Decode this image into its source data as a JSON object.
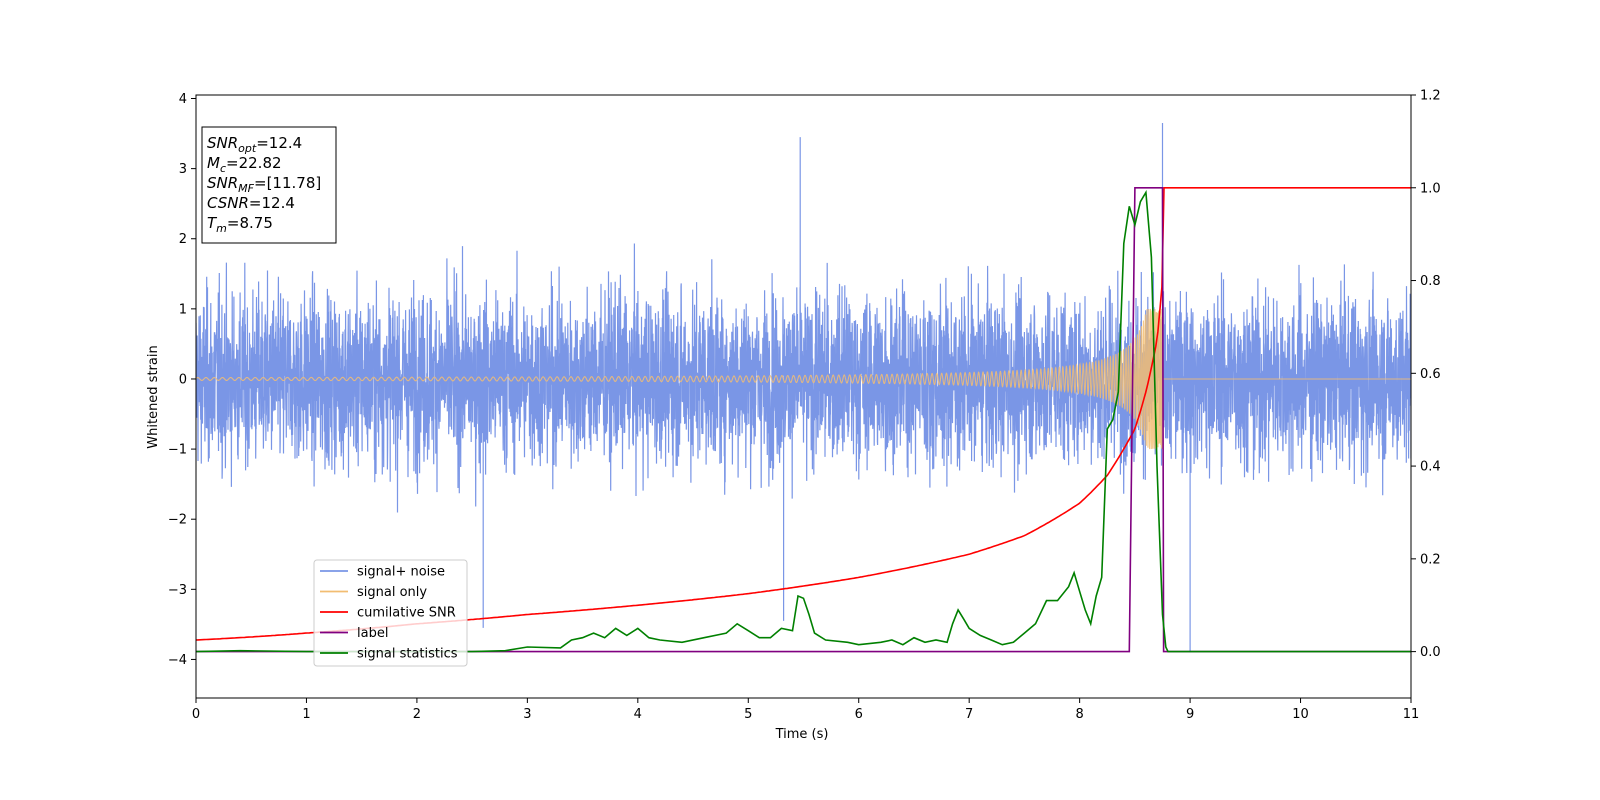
{
  "chart_data": {
    "type": "line",
    "xlabel": "Time (s)",
    "ylabel_left": "Whitened strain",
    "ylabel_right": "",
    "xlim": [
      0,
      11
    ],
    "ylim_left": [
      -4.55,
      4.05
    ],
    "ylim_right": [
      -0.1,
      1.2
    ],
    "x_ticks": [
      "0",
      "1",
      "2",
      "3",
      "4",
      "5",
      "6",
      "7",
      "8",
      "9",
      "10",
      "11"
    ],
    "y_ticks_left": [
      "−4",
      "−3",
      "−2",
      "−1",
      "0",
      "1",
      "2",
      "3",
      "4"
    ],
    "y_ticks_right": [
      "0.0",
      "0.2",
      "0.4",
      "0.6",
      "0.8",
      "1.0",
      "1.2"
    ],
    "grid": false,
    "legend_position": "lower-left",
    "info_box": {
      "position": "top-left",
      "lines": [
        {
          "main": "SNR",
          "sub": "opt",
          "value": "=12.4"
        },
        {
          "main": "M",
          "sub": "c",
          "value": "=22.82"
        },
        {
          "main": "SNR",
          "sub": "MF",
          "value": "=[11.78]"
        },
        {
          "main": "CSNR",
          "sub": "",
          "value": "=12.4"
        },
        {
          "main": "T",
          "sub": "m",
          "value": "=8.75"
        }
      ]
    },
    "series": [
      {
        "name": "signal+ noise",
        "axis": "left",
        "color": "#7a96e6",
        "kind": "noise",
        "description_values": {
          "x_start": 0,
          "x_end": 11,
          "typical_amplitude": 2.2,
          "peak_max": 3.65,
          "peak_min": -3.9
        }
      },
      {
        "name": "signal only",
        "axis": "left",
        "color": "#f2bd72",
        "kind": "chirp",
        "description_values": {
          "x_start": 0,
          "x_merge": 8.75,
          "amplitude_start": 0.02,
          "amplitude_at_merge": 1.0
        }
      },
      {
        "name": "cumilative SNR",
        "axis": "right",
        "color": "#ff0000",
        "x": [
          0,
          1,
          2,
          3,
          4,
          5,
          6,
          7,
          7.5,
          8,
          8.25,
          8.5,
          8.6,
          8.7,
          8.75,
          8.76,
          11
        ],
        "values": [
          0.025,
          0.04,
          0.06,
          0.08,
          0.1,
          0.125,
          0.16,
          0.21,
          0.25,
          0.32,
          0.38,
          0.48,
          0.56,
          0.67,
          0.8,
          1.0,
          1.0
        ]
      },
      {
        "name": "label",
        "axis": "right",
        "color": "#800080",
        "x": [
          0,
          8.45,
          8.5,
          8.75,
          8.76,
          11
        ],
        "values": [
          0.0,
          0.0,
          1.0,
          1.0,
          0.0,
          0.0
        ]
      },
      {
        "name": "signal statistics",
        "axis": "right",
        "color": "#008000",
        "x": [
          0,
          0.4,
          1.0,
          2.0,
          2.5,
          2.8,
          3.0,
          3.3,
          3.4,
          3.5,
          3.6,
          3.7,
          3.8,
          3.9,
          4.0,
          4.1,
          4.2,
          4.4,
          4.6,
          4.8,
          4.9,
          5.0,
          5.1,
          5.2,
          5.3,
          5.4,
          5.45,
          5.5,
          5.55,
          5.6,
          5.7,
          5.9,
          6.0,
          6.2,
          6.3,
          6.4,
          6.5,
          6.6,
          6.7,
          6.8,
          6.85,
          6.9,
          6.95,
          7.0,
          7.1,
          7.2,
          7.3,
          7.4,
          7.5,
          7.6,
          7.7,
          7.8,
          7.9,
          7.95,
          8.0,
          8.05,
          8.1,
          8.15,
          8.2,
          8.25,
          8.3,
          8.35,
          8.4,
          8.45,
          8.5,
          8.55,
          8.6,
          8.65,
          8.7,
          8.75,
          8.78,
          8.8,
          8.85,
          9.0,
          11
        ],
        "values": [
          0.0,
          0.002,
          0.0,
          0.0,
          0.0,
          0.002,
          0.01,
          0.008,
          0.025,
          0.03,
          0.04,
          0.03,
          0.05,
          0.035,
          0.05,
          0.03,
          0.025,
          0.02,
          0.03,
          0.04,
          0.06,
          0.045,
          0.03,
          0.03,
          0.05,
          0.045,
          0.12,
          0.115,
          0.08,
          0.04,
          0.025,
          0.02,
          0.015,
          0.02,
          0.025,
          0.015,
          0.03,
          0.02,
          0.025,
          0.02,
          0.06,
          0.09,
          0.07,
          0.05,
          0.035,
          0.025,
          0.015,
          0.02,
          0.04,
          0.06,
          0.11,
          0.11,
          0.14,
          0.17,
          0.13,
          0.09,
          0.06,
          0.12,
          0.16,
          0.48,
          0.5,
          0.56,
          0.88,
          0.96,
          0.92,
          0.97,
          0.99,
          0.85,
          0.4,
          0.08,
          0.01,
          0.0,
          0.0,
          0.0,
          0.0
        ]
      }
    ]
  }
}
